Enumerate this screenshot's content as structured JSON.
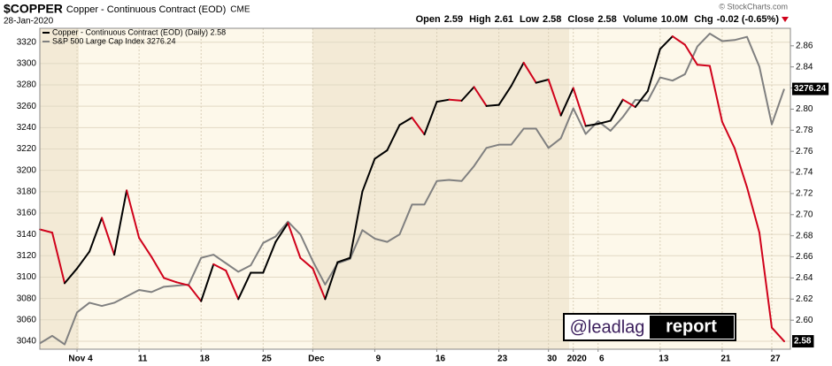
{
  "chart_data": {
    "type": "line",
    "title": "$COPPER",
    "subtitle": "Copper - Continuous Contract (EOD)",
    "exchange": "CME",
    "date": "28-Jan-2020",
    "copyright": "© StockCharts.com",
    "quote": [
      {
        "label": "Open",
        "value": 2.59
      },
      {
        "label": "High",
        "value": 2.61
      },
      {
        "label": "Low",
        "value": 2.58
      },
      {
        "label": "Close",
        "value": 2.58
      },
      {
        "label": "Volume",
        "value": "10.0M"
      },
      {
        "label": "Chg",
        "value": "-0.02 (-0.65%)"
      }
    ],
    "watermark": [
      "@leadlag",
      "report"
    ],
    "categories": [
      null,
      null,
      null,
      "Nov 4",
      null,
      null,
      null,
      null,
      "11",
      null,
      null,
      null,
      null,
      "18",
      null,
      null,
      null,
      null,
      "25",
      null,
      null,
      null,
      "Dec",
      null,
      null,
      null,
      null,
      "9",
      null,
      null,
      null,
      null,
      "16",
      null,
      null,
      null,
      null,
      "23",
      null,
      null,
      null,
      "30",
      null,
      "2020",
      null,
      "6",
      null,
      null,
      null,
      null,
      "13",
      null,
      null,
      null,
      null,
      "21",
      null,
      null,
      null,
      "27",
      null
    ],
    "series": [
      {
        "name": "Copper - Continuous Contract (EOD) (Daily) 2.58",
        "axis": "y2",
        "color": "#000000",
        "down_color": "#d0021b",
        "values": [
          2.686,
          2.683,
          2.635,
          2.649,
          2.665,
          2.697,
          2.662,
          2.723,
          2.678,
          2.66,
          2.64,
          2.636,
          2.633,
          2.618,
          2.653,
          2.647,
          2.62,
          2.645,
          2.645,
          2.674,
          2.692,
          2.659,
          2.649,
          2.62,
          2.655,
          2.659,
          2.722,
          2.753,
          2.761,
          2.785,
          2.792,
          2.776,
          2.807,
          2.809,
          2.808,
          2.821,
          2.803,
          2.804,
          2.822,
          2.844,
          2.825,
          2.828,
          2.794,
          2.82,
          2.784,
          2.786,
          2.789,
          2.809,
          2.802,
          2.817,
          2.857,
          2.869,
          2.861,
          2.842,
          2.841,
          2.788,
          2.763,
          2.726,
          2.683,
          2.593,
          2.58
        ]
      },
      {
        "name": "S&P 500 Large Cap Index 3276.24",
        "axis": "y",
        "color": "#808080",
        "values": [
          3038,
          3045,
          3037,
          3067,
          3076,
          3073,
          3076,
          3082,
          3088,
          3086,
          3091,
          3092,
          3093,
          3118,
          3121,
          3113,
          3105,
          3111,
          3132,
          3138,
          3152,
          3140,
          3115,
          3093,
          3113,
          3117,
          3144,
          3136,
          3133,
          3140,
          3168,
          3168,
          3190,
          3191,
          3190,
          3204,
          3221,
          3224,
          3224,
          3239,
          3239,
          3221,
          3230,
          3258,
          3234,
          3246,
          3237,
          3250,
          3266,
          3265,
          3287,
          3284,
          3290,
          3316,
          3328,
          3321,
          3322,
          3325,
          3297,
          3243,
          3276.24
        ]
      }
    ],
    "ylim": [
      3032.5,
      3333
    ],
    "yticks": [
      3040,
      3060,
      3080,
      3100,
      3120,
      3140,
      3160,
      3180,
      3200,
      3220,
      3240,
      3260,
      3280,
      3300,
      3320
    ],
    "y2lim": [
      2.5725,
      2.8766
    ],
    "y2ticks": [
      {
        "value": 2.6,
        "label": "2.60"
      },
      2.62,
      2.64,
      2.66,
      2.68,
      {
        "value": 2.7,
        "label": "2.70"
      },
      2.72,
      2.74,
      2.76,
      2.78,
      {
        "value": 2.8,
        "label": "2.80"
      },
      2.82,
      2.84,
      2.86
    ],
    "grid": true
  }
}
